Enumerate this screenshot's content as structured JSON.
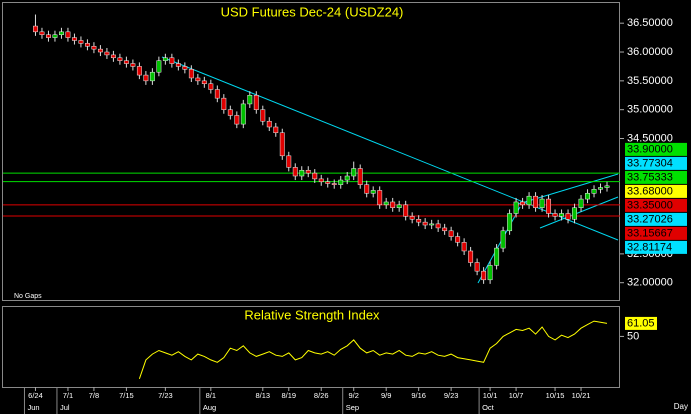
{
  "chart_data": [
    {
      "type": "candlestick",
      "title": "USD Futures Dec-24 (USDZ24)",
      "annotation": "No Gaps",
      "x_unit_label": "Day",
      "up_color": "#00c000",
      "down_color": "#e00000",
      "xlim": [
        -5,
        90
      ],
      "ylim": [
        31.7,
        36.85
      ],
      "yticks": [
        {
          "value": 36.5,
          "label": "36.50000"
        },
        {
          "value": 36,
          "label": "36.00000"
        },
        {
          "value": 35.5,
          "label": "35.50000"
        },
        {
          "value": 35,
          "label": "35.00000"
        },
        {
          "value": 34.5,
          "label": "34.50000"
        },
        {
          "value": 32.5,
          "label": "32.50000"
        },
        {
          "value": 32,
          "label": "32.00000"
        }
      ],
      "xticks": [
        {
          "value": 0,
          "label": "6/24"
        },
        {
          "value": 5,
          "label": "7/1"
        },
        {
          "value": 9,
          "label": "7/8"
        },
        {
          "value": 14,
          "label": "7/15"
        },
        {
          "value": 20,
          "label": "7/23"
        },
        {
          "value": 27,
          "label": "8/1"
        },
        {
          "value": 35,
          "label": "8/13"
        },
        {
          "value": 39,
          "label": "8/19"
        },
        {
          "value": 44,
          "label": "8/26"
        },
        {
          "value": 49,
          "label": "9/2"
        },
        {
          "value": 54,
          "label": "9/9"
        },
        {
          "value": 59,
          "label": "9/16"
        },
        {
          "value": 64,
          "label": "9/23"
        },
        {
          "value": 70,
          "label": "10/1"
        },
        {
          "value": 74,
          "label": "10/7"
        },
        {
          "value": 80,
          "label": "10/15"
        },
        {
          "value": 84,
          "label": "10/21"
        }
      ],
      "month_labels": [
        {
          "value": 0,
          "label": "Jun"
        },
        {
          "value": 5,
          "label": "Jul"
        },
        {
          "value": 27,
          "label": "Aug"
        },
        {
          "value": 49,
          "label": "Sep"
        },
        {
          "value": 70,
          "label": "Oct"
        }
      ],
      "levels": [
        {
          "value": 33.9,
          "label": "33.90000",
          "color": "#00e000",
          "text_color": "#000000",
          "line": true
        },
        {
          "value": 33.77304,
          "label": "33.77304",
          "color": "#00e0ff",
          "text_color": "#000000",
          "line": false
        },
        {
          "value": 33.75333,
          "label": "33.75333",
          "color": "#00e000",
          "text_color": "#000000",
          "line": true
        },
        {
          "value": 33.68,
          "label": "33.68000",
          "color": "#ffff00",
          "text_color": "#000000",
          "line": false
        },
        {
          "value": 33.35,
          "label": "33.35000",
          "color": "#e00000",
          "text_color": "#000000",
          "line": true
        },
        {
          "value": 33.27026,
          "label": "33.27026",
          "color": "#00e0ff",
          "text_color": "#000000",
          "line": false
        },
        {
          "value": 33.15667,
          "label": "33.15667",
          "color": "#e00000",
          "text_color": "#000000",
          "line": true
        },
        {
          "value": 32.81174,
          "label": "32.81174",
          "color": "#00e0ff",
          "text_color": "#000000",
          "line": false
        }
      ],
      "open": [
        36.45,
        36.35,
        36.3,
        36.25,
        36.3,
        36.35,
        36.25,
        36.2,
        36.15,
        36.1,
        36.05,
        36.0,
        35.95,
        35.9,
        35.85,
        35.8,
        35.75,
        35.6,
        35.5,
        35.65,
        35.85,
        35.9,
        35.8,
        35.75,
        35.7,
        35.55,
        35.5,
        35.45,
        35.35,
        35.2,
        35.0,
        34.9,
        34.75,
        35.1,
        35.25,
        35.0,
        34.8,
        34.7,
        34.6,
        34.2,
        34.0,
        33.85,
        33.95,
        33.9,
        33.8,
        33.75,
        33.72,
        33.7,
        33.78,
        33.85,
        33.98,
        33.7,
        33.55,
        33.6,
        33.35,
        33.4,
        33.3,
        33.35,
        33.15,
        33.1,
        33.05,
        33.0,
        33.02,
        32.95,
        32.9,
        32.8,
        32.7,
        32.55,
        32.35,
        32.2,
        32.05,
        32.3,
        32.6,
        32.9,
        33.2,
        33.4,
        33.35,
        33.5,
        33.3,
        33.45,
        33.2,
        33.15,
        33.2,
        33.1,
        33.3,
        33.45,
        33.55,
        33.62,
        33.65
      ],
      "high": [
        36.65,
        36.42,
        36.37,
        36.37,
        36.42,
        36.42,
        36.32,
        36.27,
        36.22,
        36.17,
        36.12,
        36.07,
        36.02,
        35.97,
        35.92,
        35.87,
        35.82,
        35.67,
        35.72,
        35.92,
        35.97,
        35.97,
        35.87,
        35.82,
        35.77,
        35.62,
        35.57,
        35.52,
        35.42,
        35.27,
        35.07,
        34.97,
        35.17,
        35.32,
        35.32,
        35.07,
        34.87,
        34.77,
        34.67,
        34.27,
        34.07,
        34.02,
        34.02,
        33.97,
        33.87,
        33.82,
        33.79,
        33.85,
        33.92,
        34.1,
        34.05,
        33.77,
        33.67,
        33.67,
        33.47,
        33.47,
        33.42,
        33.42,
        33.22,
        33.17,
        33.12,
        33.09,
        33.09,
        33.02,
        32.97,
        32.87,
        32.77,
        32.62,
        32.42,
        32.27,
        32.37,
        32.67,
        32.97,
        33.27,
        33.47,
        33.47,
        33.57,
        33.57,
        33.52,
        33.52,
        33.27,
        33.27,
        33.27,
        33.37,
        33.52,
        33.62,
        33.69,
        33.72,
        33.75
      ],
      "low": [
        36.28,
        36.23,
        36.18,
        36.18,
        36.23,
        36.18,
        36.13,
        36.08,
        36.03,
        35.98,
        35.93,
        35.88,
        35.83,
        35.78,
        35.73,
        35.68,
        35.53,
        35.43,
        35.43,
        35.58,
        35.78,
        35.73,
        35.68,
        35.63,
        35.48,
        35.43,
        35.38,
        35.28,
        35.13,
        34.93,
        34.83,
        34.68,
        34.68,
        35.03,
        34.93,
        34.73,
        34.63,
        34.53,
        34.13,
        33.93,
        33.78,
        33.78,
        33.83,
        33.73,
        33.68,
        33.65,
        33.63,
        33.63,
        33.71,
        33.78,
        33.63,
        33.48,
        33.48,
        33.28,
        33.28,
        33.23,
        33.23,
        33.08,
        33.03,
        32.98,
        32.93,
        32.93,
        32.88,
        32.83,
        32.73,
        32.63,
        32.48,
        32.28,
        32.13,
        31.98,
        31.98,
        32.23,
        32.53,
        32.83,
        33.13,
        33.28,
        33.28,
        33.23,
        33.23,
        33.13,
        33.08,
        33.08,
        33.03,
        33.03,
        33.23,
        33.38,
        33.48,
        33.55,
        33.58
      ],
      "close": [
        36.35,
        36.3,
        36.25,
        36.3,
        36.35,
        36.25,
        36.2,
        36.15,
        36.1,
        36.05,
        36.0,
        35.95,
        35.9,
        35.85,
        35.8,
        35.75,
        35.6,
        35.5,
        35.65,
        35.85,
        35.9,
        35.8,
        35.75,
        35.7,
        35.55,
        35.5,
        35.45,
        35.35,
        35.2,
        35.0,
        34.9,
        34.75,
        35.1,
        35.25,
        35.0,
        34.8,
        34.7,
        34.6,
        34.2,
        34.0,
        33.85,
        33.95,
        33.9,
        33.8,
        33.75,
        33.72,
        33.7,
        33.78,
        33.85,
        33.98,
        33.7,
        33.55,
        33.6,
        33.35,
        33.4,
        33.3,
        33.35,
        33.15,
        33.1,
        33.05,
        33.0,
        33.02,
        32.95,
        32.9,
        32.8,
        32.7,
        32.55,
        32.35,
        32.2,
        32.05,
        32.3,
        32.6,
        32.9,
        33.2,
        33.4,
        33.35,
        33.5,
        33.3,
        33.45,
        33.2,
        33.15,
        33.2,
        33.1,
        33.3,
        33.45,
        33.55,
        33.62,
        33.65,
        33.68
      ]
    },
    {
      "type": "line",
      "title": "Relative Strength Index",
      "color": "#ffff00",
      "ylim": [
        7,
        75
      ],
      "yticks": [
        50
      ],
      "values": [
        null,
        null,
        null,
        null,
        null,
        null,
        null,
        null,
        null,
        null,
        null,
        null,
        null,
        null,
        null,
        null,
        14,
        30,
        35,
        38,
        36,
        34,
        37,
        33,
        30,
        35,
        33,
        30,
        28,
        32,
        40,
        38,
        42,
        36,
        33,
        35,
        37,
        34,
        33,
        36,
        30,
        32,
        38,
        36,
        35,
        37,
        34,
        39,
        42,
        47,
        40,
        36,
        38,
        34,
        36,
        35,
        38,
        34,
        33,
        36,
        35,
        37,
        34,
        33,
        35,
        32,
        31,
        30,
        29,
        28,
        40,
        44,
        50,
        53,
        56,
        55,
        57,
        52,
        58,
        50,
        47,
        51,
        49,
        52,
        57,
        60,
        63,
        62,
        61.05
      ]
    }
  ]
}
